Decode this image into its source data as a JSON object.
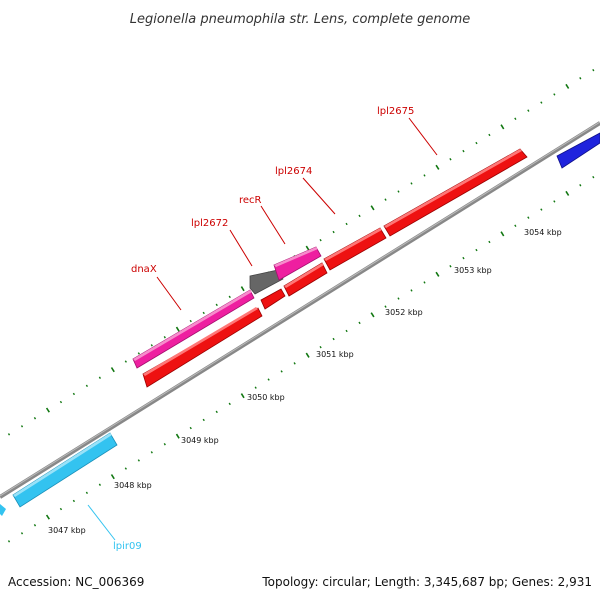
{
  "title": "Legionella pneumophila str. Lens, complete genome",
  "footer": {
    "accession": "Accession: NC_006369",
    "summary": "Topology: circular; Length: 3,345,687 bp; Genes: 2,931"
  },
  "scale": {
    "unit_labels": [
      "3047 kbp",
      "3048 kbp",
      "3049 kbp",
      "3050 kbp",
      "3051 kbp",
      "3052 kbp",
      "3053 kbp",
      "3054 kbp"
    ]
  },
  "genes": [
    {
      "label": "dnaX",
      "strand": "forward",
      "color": "#ee1fa0"
    },
    {
      "label": "lpl2672",
      "strand": "reverse",
      "color": "#ee1111"
    },
    {
      "label": "recR",
      "strand": "forward",
      "color": "#ee1fa0"
    },
    {
      "label": "lpl2674",
      "strand": "reverse",
      "color": "#ee1111"
    },
    {
      "label": "lpl2675",
      "strand": "reverse",
      "color": "#ee1111"
    },
    {
      "label": "lpir09",
      "strand": "reverse",
      "color": "#33c3f0"
    }
  ],
  "colors": {
    "forward_cds": "#ee1fa0",
    "reverse_cds": "#ee1111",
    "rna": "#33c3f0",
    "other": "#666666",
    "blue_feature": "#1f23dd",
    "backbone": "#888888",
    "tick": "#117711"
  }
}
